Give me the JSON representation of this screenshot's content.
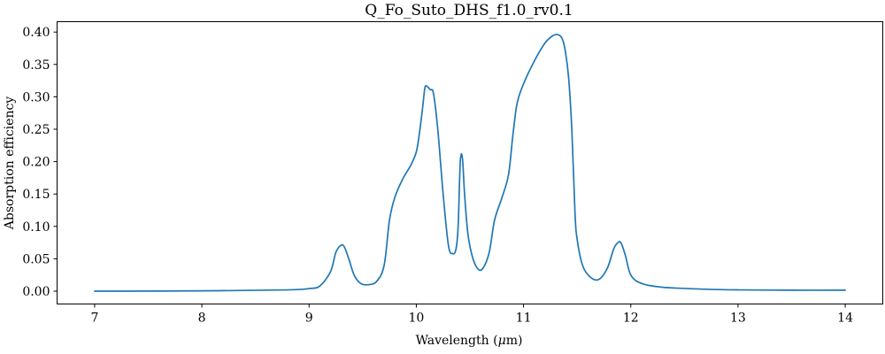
{
  "chart_data": {
    "type": "line",
    "title": "Q_Fo_Suto_DHS_f1.0_rv0.1",
    "xlabel": "Wavelength (",
    "xlabel_symbol": "μ",
    "xlabel_suffix": "m)",
    "ylabel": "Absorption efficiency",
    "xlim": [
      6.65,
      14.35
    ],
    "ylim": [
      -0.0198,
      0.416
    ],
    "xticks": [
      7,
      8,
      9,
      10,
      11,
      12,
      13,
      14
    ],
    "xtick_labels": [
      "7",
      "8",
      "9",
      "10",
      "11",
      "12",
      "13",
      "14"
    ],
    "yticks": [
      0.0,
      0.05,
      0.1,
      0.15,
      0.2,
      0.25,
      0.3,
      0.35,
      0.4
    ],
    "ytick_labels": [
      "0.00",
      "0.05",
      "0.10",
      "0.15",
      "0.20",
      "0.25",
      "0.30",
      "0.35",
      "0.40"
    ],
    "grid": false,
    "legend": "none",
    "colors": {
      "line": "#1f77b4"
    },
    "series": [
      {
        "x": [
          7.0,
          8.0,
          8.8,
          9.0,
          9.1,
          9.2,
          9.25,
          9.3,
          9.33,
          9.37,
          9.42,
          9.48,
          9.55,
          9.63,
          9.7,
          9.75,
          9.8,
          9.87,
          9.95,
          10.0,
          10.03,
          10.06,
          10.08,
          10.1,
          10.13,
          10.16,
          10.2,
          10.25,
          10.3,
          10.34,
          10.37,
          10.39,
          10.41,
          10.43,
          10.45,
          10.48,
          10.52,
          10.57,
          10.62,
          10.68,
          10.73,
          10.8,
          10.86,
          10.9,
          10.94,
          11.0,
          11.1,
          11.2,
          11.27,
          11.32,
          11.36,
          11.39,
          11.42,
          11.45,
          11.48,
          11.5,
          11.55,
          11.62,
          11.7,
          11.78,
          11.84,
          11.88,
          11.91,
          11.95,
          12.0,
          12.1,
          12.3,
          12.7,
          13.0,
          13.5,
          14.0
        ],
        "y": [
          0.0,
          0.0005,
          0.002,
          0.004,
          0.008,
          0.03,
          0.06,
          0.071,
          0.068,
          0.05,
          0.025,
          0.012,
          0.01,
          0.015,
          0.04,
          0.11,
          0.145,
          0.172,
          0.195,
          0.215,
          0.245,
          0.285,
          0.314,
          0.316,
          0.311,
          0.305,
          0.25,
          0.15,
          0.07,
          0.058,
          0.065,
          0.1,
          0.2,
          0.205,
          0.15,
          0.09,
          0.055,
          0.035,
          0.035,
          0.06,
          0.11,
          0.145,
          0.18,
          0.24,
          0.29,
          0.32,
          0.355,
          0.383,
          0.394,
          0.396,
          0.39,
          0.37,
          0.33,
          0.25,
          0.12,
          0.08,
          0.04,
          0.022,
          0.018,
          0.035,
          0.065,
          0.075,
          0.074,
          0.055,
          0.025,
          0.012,
          0.006,
          0.003,
          0.002,
          0.0015,
          0.0015
        ]
      }
    ]
  }
}
